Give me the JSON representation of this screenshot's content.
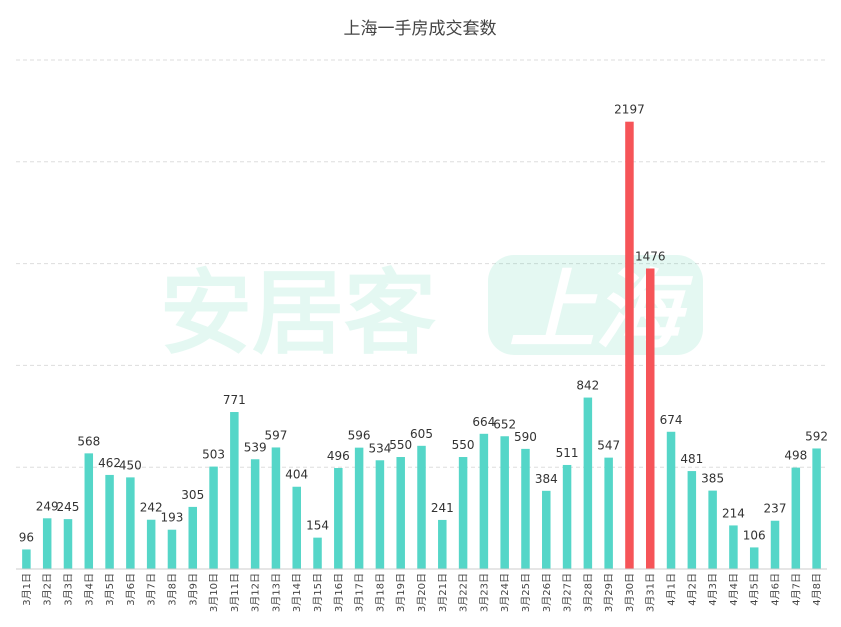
{
  "chart_data": {
    "type": "bar",
    "title": "上海一手房成交套数",
    "xlabel": "",
    "ylabel": "",
    "ylim": [
      0,
      2500
    ],
    "grid": true,
    "legend": "none",
    "categories": [
      "3月1日",
      "3月2日",
      "3月3日",
      "3月4日",
      "3月5日",
      "3月6日",
      "3月7日",
      "3月8日",
      "3月9日",
      "3月10日",
      "3月11日",
      "3月12日",
      "3月13日",
      "3月14日",
      "3月15日",
      "3月16日",
      "3月17日",
      "3月18日",
      "3月19日",
      "3月20日",
      "3月21日",
      "3月22日",
      "3月23日",
      "3月24日",
      "3月25日",
      "3月26日",
      "3月27日",
      "3月28日",
      "3月29日",
      "3月30日",
      "3月31日",
      "4月1日",
      "4月2日",
      "4月3日",
      "4月4日",
      "4月5日",
      "4月6日",
      "4月7日",
      "4月8日"
    ],
    "values": [
      96,
      249,
      245,
      568,
      462,
      450,
      242,
      193,
      305,
      503,
      771,
      539,
      597,
      404,
      154,
      496,
      596,
      534,
      550,
      605,
      241,
      550,
      664,
      652,
      590,
      384,
      511,
      842,
      547,
      2197,
      1476,
      674,
      481,
      385,
      214,
      106,
      237,
      498,
      592
    ],
    "highlight_categories": [
      "3月30日",
      "3月31日"
    ],
    "colors": {
      "bar": "#55d6c8",
      "highlight": "#f65458"
    }
  },
  "watermark": {
    "brand": "安居客",
    "city": "上海"
  }
}
